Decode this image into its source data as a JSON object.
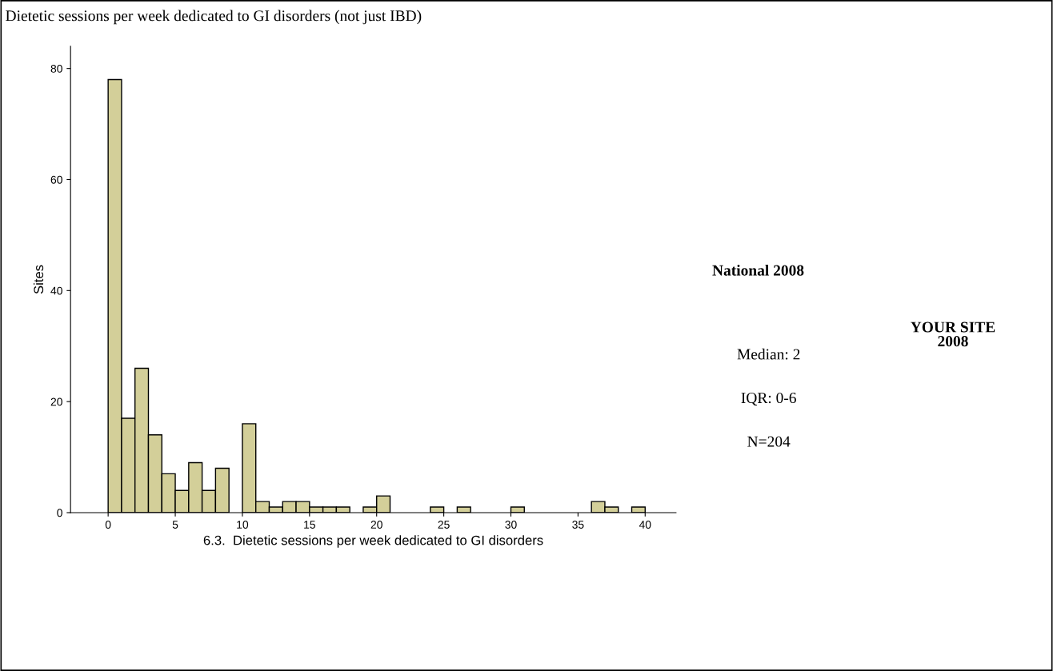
{
  "chart_data": {
    "type": "histogram",
    "title": "Dietetic sessions per week dedicated to GI disorders (not just IBD)",
    "xlabel": "6.3.  Dietetic sessions per week dedicated to GI disorders",
    "ylabel": "Sites",
    "bins": [
      0,
      1,
      2,
      3,
      4,
      5,
      6,
      7,
      8,
      9,
      10,
      11,
      12,
      13,
      14,
      15,
      16,
      17,
      18,
      19,
      20,
      21,
      22,
      23,
      24,
      25,
      26,
      27,
      28,
      29,
      30,
      31,
      32,
      33,
      34,
      35,
      36,
      37,
      38,
      39,
      40
    ],
    "values": [
      78,
      17,
      26,
      14,
      7,
      4,
      9,
      4,
      8,
      0,
      16,
      2,
      1,
      2,
      2,
      1,
      1,
      1,
      0,
      1,
      3,
      0,
      0,
      0,
      1,
      0,
      1,
      0,
      0,
      0,
      1,
      0,
      0,
      0,
      0,
      0,
      2,
      1,
      0,
      1
    ],
    "color": "#d3cf99",
    "xlim": [
      -2.8,
      42.3
    ],
    "ylim": [
      0,
      84
    ],
    "xticks": [
      0,
      5,
      10,
      15,
      20,
      25,
      30,
      35,
      40
    ],
    "yticks": [
      0,
      20,
      40,
      60,
      80
    ],
    "grid": false,
    "legend": false,
    "annotations": [
      "National 2008",
      "Median: 2",
      "IQR: 0-6",
      "N=204",
      "YOUR SITE\n2008"
    ]
  }
}
